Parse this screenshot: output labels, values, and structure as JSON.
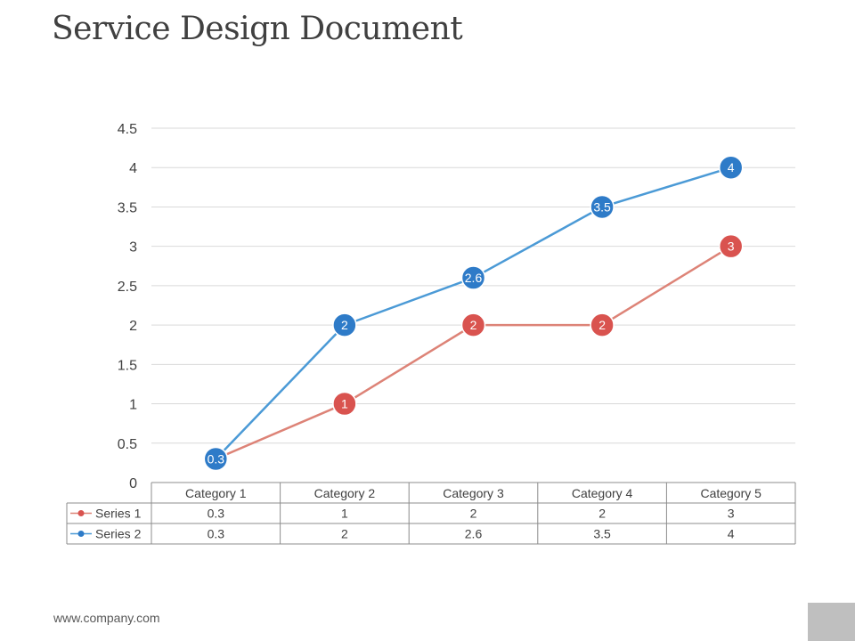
{
  "page": {
    "title": "Service Design Document",
    "footer": "www.company.com"
  },
  "chart_data": {
    "type": "line",
    "title": "",
    "xlabel": "",
    "ylabel": "",
    "ylim": [
      0,
      4.5
    ],
    "yticks": [
      0,
      0.5,
      1,
      1.5,
      2,
      2.5,
      3,
      3.5,
      4,
      4.5
    ],
    "yticks_labels": [
      "0",
      "0.5",
      "1",
      "1.5",
      "2",
      "2.5",
      "3",
      "3.5",
      "4",
      "4.5"
    ],
    "grid": true,
    "legend": "data-table",
    "categories": [
      "Category 1",
      "Category 2",
      "Category 3",
      "Category 4",
      "Category 5"
    ],
    "series": [
      {
        "name": "Series 1",
        "color": "#d9534f",
        "line_color": "#dd8377",
        "values": [
          0.3,
          1,
          2,
          2,
          3
        ],
        "labels": [
          "0.3",
          "1",
          "2",
          "2",
          "3"
        ]
      },
      {
        "name": "Series 2",
        "color": "#2e7bc8",
        "line_color": "#4b9ad6",
        "values": [
          0.3,
          2,
          2.6,
          3.5,
          4
        ],
        "labels": [
          "0.3",
          "2",
          "2.6",
          "3.5",
          "4"
        ]
      }
    ]
  }
}
